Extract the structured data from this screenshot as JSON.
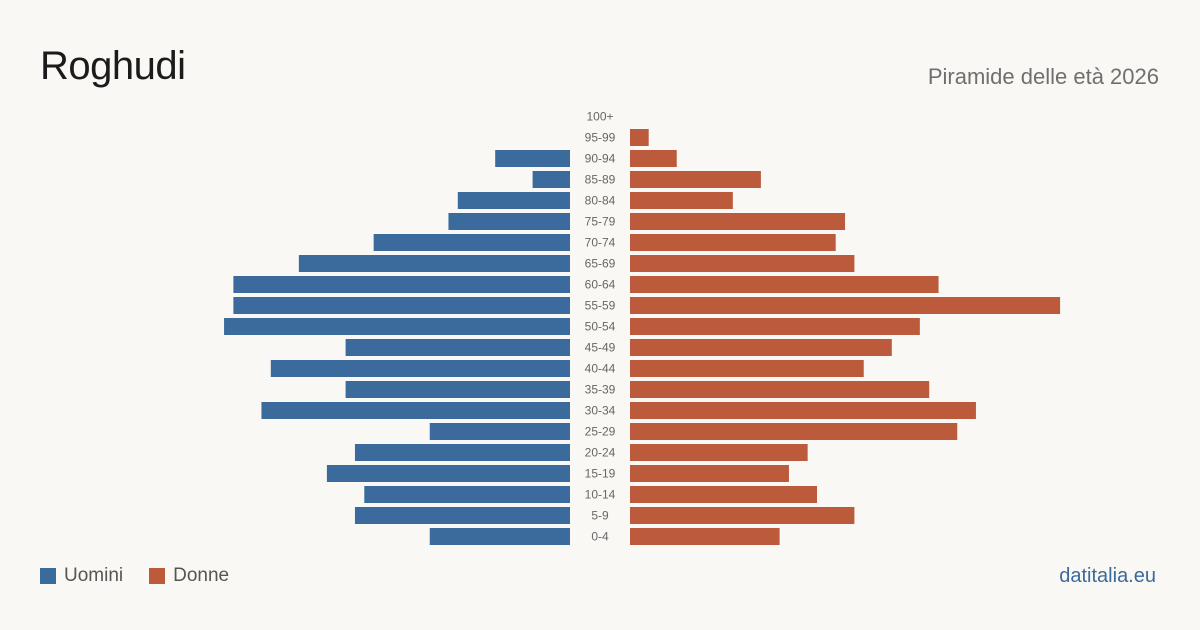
{
  "header": {
    "title": "Roghudi",
    "subtitle": "Piramide delle età 2026"
  },
  "footer": {
    "source": "datitalia.eu"
  },
  "colors": {
    "male": "#3b6a9c",
    "female": "#bb5b3c",
    "source": "#3b6a9c"
  },
  "chart_data": {
    "type": "bar",
    "orientation": "horizontal-pyramid",
    "categories": [
      "100+",
      "95-99",
      "90-94",
      "85-89",
      "80-84",
      "75-79",
      "70-74",
      "65-69",
      "60-64",
      "55-59",
      "50-54",
      "45-49",
      "40-44",
      "35-39",
      "30-34",
      "25-29",
      "20-24",
      "15-19",
      "10-14",
      "5-9",
      "0-4"
    ],
    "series": [
      {
        "name": "Uomini",
        "side": "left",
        "values": [
          0,
          0,
          8,
          4,
          12,
          13,
          21,
          29,
          36,
          36,
          37,
          24,
          32,
          24,
          33,
          15,
          23,
          26,
          22,
          23,
          15
        ]
      },
      {
        "name": "Donne",
        "side": "right",
        "values": [
          0,
          2,
          5,
          14,
          11,
          23,
          22,
          24,
          33,
          46,
          31,
          28,
          25,
          32,
          37,
          35,
          19,
          17,
          20,
          24,
          16
        ]
      }
    ],
    "legend": "bottom-left",
    "grid": false
  }
}
